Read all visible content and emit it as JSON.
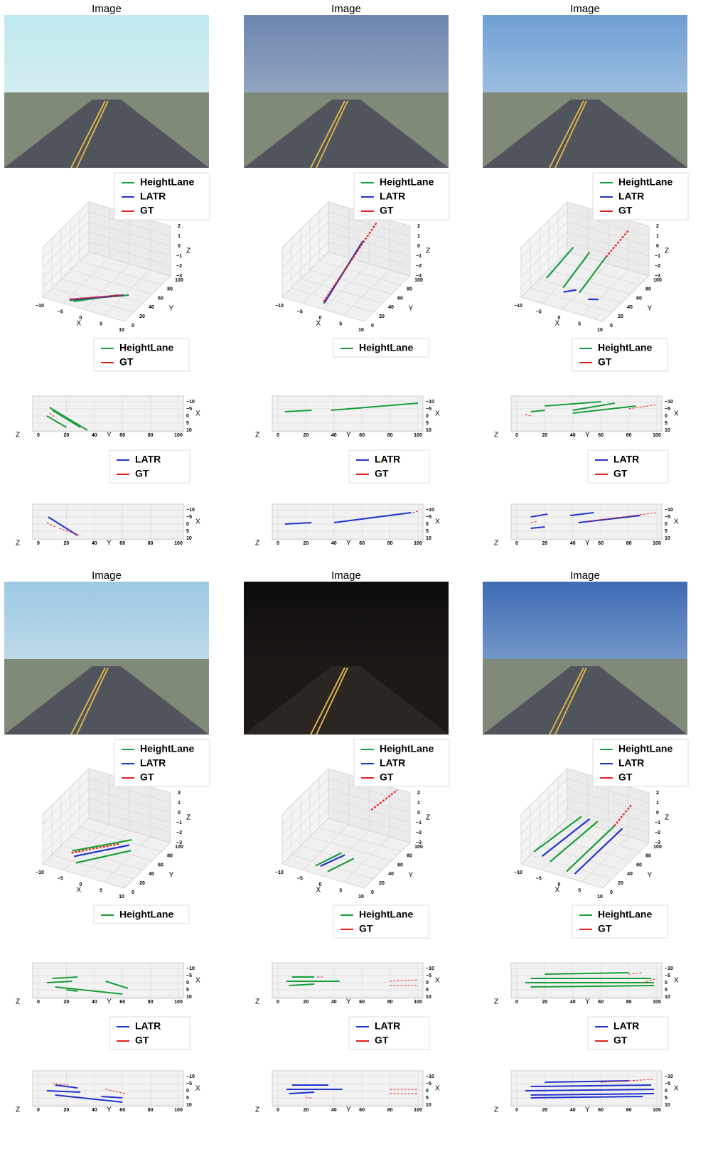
{
  "series": [
    {
      "name": "HeightLane",
      "color": "#1a9e3a"
    },
    {
      "name": "LATR",
      "color": "#2233cc"
    },
    {
      "name": "GT",
      "color": "#e8201c"
    }
  ],
  "axes3d": {
    "xlim": [
      -10,
      10
    ],
    "ylim": [
      0,
      100
    ],
    "zlim": [
      -3,
      2
    ],
    "xlabel": "X",
    "ylabel": "Y",
    "zlabel": "Z",
    "xticks": [
      {
        "value": -10,
        "label": "−10"
      },
      {
        "value": -5,
        "label": "−5"
      },
      0,
      5,
      10
    ],
    "yticks": [
      0,
      20,
      40,
      60,
      80,
      100
    ],
    "zticks": [
      {
        "value": -3,
        "label": "−3"
      },
      {
        "value": -2,
        "label": "−2"
      },
      {
        "value": -1,
        "label": "−1"
      },
      0,
      1,
      2
    ]
  },
  "topview": {
    "xlim": [
      0,
      100
    ],
    "ylim": [
      -10,
      10
    ],
    "xlabel": "Y",
    "ylabel": "X",
    "zlabel": "Z",
    "xticks": [
      0,
      20,
      40,
      60,
      80,
      100
    ],
    "yticks": [
      {
        "value": -10,
        "label": "−10"
      },
      {
        "value": -5,
        "label": "−5"
      },
      0,
      5,
      10
    ]
  },
  "panels": [
    {
      "title": "Image",
      "lanes3d": {
        "HeightLane": [
          [
            [
              -4,
              5,
              -2.8
            ],
            [
              6,
              45,
              -2.9
            ]
          ],
          [
            [
              -3,
              5,
              -2.8
            ],
            [
              4,
              40,
              -2.9
            ]
          ]
        ],
        "LATR": [
          [
            [
              -4,
              6,
              -2.8
            ],
            [
              5,
              42,
              -2.9
            ]
          ]
        ],
        "GT": [
          [
            [
              -4,
              5,
              -2.7
            ],
            [
              5,
              40,
              -2.8
            ]
          ]
        ]
      },
      "top1": {
        "HeightLane": [
          [
            [
              8,
              -6
            ],
            [
              35,
              10
            ]
          ],
          [
            [
              10,
              -4
            ],
            [
              30,
              8
            ]
          ],
          [
            [
              6,
              0
            ],
            [
              20,
              8
            ]
          ]
        ],
        "GT": [
          [
            [
              8,
              -2
            ],
            [
              12,
              1
            ]
          ]
        ]
      },
      "top2": {
        "LATR": [
          [
            [
              7,
              -5
            ],
            [
              28,
              8
            ]
          ]
        ],
        "GT": [
          [
            [
              6,
              -1
            ],
            [
              12,
              2
            ]
          ],
          [
            [
              15,
              3
            ],
            [
              30,
              8
            ]
          ]
        ]
      }
    },
    {
      "title": "Image",
      "lanes3d": {
        "HeightLane": [
          [
            [
              -1,
              10,
              -3
            ],
            [
              3,
              60,
              1.5
            ]
          ]
        ],
        "LATR": [
          [
            [
              -1,
              12,
              -3
            ],
            [
              3,
              60,
              1.5
            ]
          ]
        ],
        "GT": [
          [
            [
              -1,
              10,
              -2.8
            ],
            [
              4,
              80,
              2.5
            ]
          ]
        ]
      },
      "top1": {
        "HeightLane": [
          [
            [
              5,
              -3
            ],
            [
              24,
              -4
            ]
          ],
          [
            [
              38,
              -4
            ],
            [
              100,
              -9
            ]
          ]
        ]
      },
      "top2": {
        "LATR": [
          [
            [
              5,
              0
            ],
            [
              24,
              -1
            ]
          ],
          [
            [
              40,
              -1
            ],
            [
              95,
              -8
            ]
          ]
        ],
        "GT": [
          [
            [
              96,
              -8
            ],
            [
              100,
              -9
            ]
          ]
        ]
      }
    },
    {
      "title": "Image",
      "lanes3d": {
        "HeightLane": [
          [
            [
              -6,
              20,
              -1.5
            ],
            [
              -4,
              60,
              0
            ]
          ],
          [
            [
              -2,
              20,
              -2
            ],
            [
              0,
              60,
              0
            ]
          ],
          [
            [
              2,
              20,
              -2
            ],
            [
              4,
              60,
              0
            ]
          ]
        ],
        "LATR": [
          [
            [
              -3,
              30,
              -3
            ],
            [
              -1,
              40,
              -3
            ]
          ],
          [
            [
              3,
              30,
              -3
            ],
            [
              5,
              35,
              -3
            ]
          ]
        ],
        "GT": [
          [
            [
              4,
              60,
              0
            ],
            [
              6,
              90,
              1.5
            ]
          ]
        ]
      },
      "top1": {
        "HeightLane": [
          [
            [
              10,
              -3
            ],
            [
              20,
              -4
            ]
          ],
          [
            [
              20,
              -7
            ],
            [
              60,
              -10
            ]
          ],
          [
            [
              40,
              -2
            ],
            [
              85,
              -7
            ]
          ],
          [
            [
              40,
              -4
            ],
            [
              70,
              -9
            ]
          ]
        ],
        "GT": [
          [
            [
              6,
              -1
            ],
            [
              10,
              0
            ]
          ],
          [
            [
              80,
              -5
            ],
            [
              100,
              -8
            ]
          ]
        ]
      },
      "top2": {
        "LATR": [
          [
            [
              10,
              -5
            ],
            [
              22,
              -7
            ]
          ],
          [
            [
              38,
              -6
            ],
            [
              55,
              -8
            ]
          ],
          [
            [
              44,
              -1
            ],
            [
              88,
              -6
            ]
          ],
          [
            [
              10,
              3
            ],
            [
              20,
              2
            ]
          ]
        ],
        "GT": [
          [
            [
              50,
              -2
            ],
            [
              100,
              -8
            ]
          ],
          [
            [
              10,
              -1
            ],
            [
              15,
              -2
            ]
          ]
        ]
      }
    },
    {
      "title": "Image",
      "lanes3d": {
        "HeightLane": [
          [
            [
              -5,
              20,
              -2
            ],
            [
              5,
              60,
              -1.5
            ]
          ],
          [
            [
              -3,
              10,
              -2.5
            ],
            [
              6,
              50,
              -2
            ]
          ]
        ],
        "LATR": [
          [
            [
              -4,
              15,
              -2.2
            ],
            [
              5,
              55,
              -1.8
            ]
          ]
        ],
        "GT": [
          [
            [
              -5,
              18,
              -2.1
            ],
            [
              3,
              50,
              -1.7
            ]
          ]
        ]
      },
      "top1": {
        "HeightLane": [
          [
            [
              10,
              -3
            ],
            [
              28,
              -4
            ]
          ],
          [
            [
              6,
              0
            ],
            [
              24,
              -1
            ]
          ],
          [
            [
              12,
              3
            ],
            [
              60,
              8
            ]
          ],
          [
            [
              20,
              5
            ],
            [
              28,
              6
            ]
          ],
          [
            [
              48,
              -1
            ],
            [
              64,
              4
            ]
          ]
        ]
      },
      "top2": {
        "LATR": [
          [
            [
              12,
              -4
            ],
            [
              28,
              -2
            ]
          ],
          [
            [
              6,
              0
            ],
            [
              30,
              1
            ]
          ],
          [
            [
              12,
              3
            ],
            [
              60,
              8
            ]
          ],
          [
            [
              45,
              4
            ],
            [
              60,
              5
            ]
          ]
        ],
        "GT": [
          [
            [
              10,
              -5
            ],
            [
              22,
              -4
            ]
          ],
          [
            [
              48,
              -1
            ],
            [
              62,
              2
            ]
          ]
        ]
      }
    },
    {
      "title": "Image",
      "lanes3d": {
        "HeightLane": [
          [
            [
              -3,
              10,
              -2.8
            ],
            [
              0,
              40,
              -2.5
            ]
          ],
          [
            [
              0,
              10,
              -3
            ],
            [
              3,
              40,
              -2.7
            ]
          ]
        ],
        "LATR": [
          [
            [
              -2,
              12,
              -2.8
            ],
            [
              1,
              38,
              -2.5
            ]
          ]
        ],
        "GT": [
          [
            [
              5,
              60,
              1.5
            ],
            [
              8,
              90,
              2.5
            ]
          ]
        ]
      },
      "top1": {
        "HeightLane": [
          [
            [
              10,
              -4
            ],
            [
              26,
              -4
            ]
          ],
          [
            [
              6,
              -1
            ],
            [
              44,
              -1
            ]
          ],
          [
            [
              8,
              2
            ],
            [
              26,
              1
            ]
          ]
        ],
        "GT": [
          [
            [
              28,
              -4
            ],
            [
              32,
              -4
            ]
          ],
          [
            [
              80,
              2
            ],
            [
              100,
              2
            ]
          ],
          [
            [
              80,
              -1
            ],
            [
              100,
              -2
            ]
          ]
        ]
      },
      "top2": {
        "LATR": [
          [
            [
              10,
              -4
            ],
            [
              36,
              -4
            ]
          ],
          [
            [
              6,
              -1
            ],
            [
              46,
              -1
            ]
          ],
          [
            [
              8,
              2
            ],
            [
              26,
              1
            ]
          ]
        ],
        "GT": [
          [
            [
              80,
              -1
            ],
            [
              100,
              -1
            ]
          ],
          [
            [
              80,
              2
            ],
            [
              100,
              2
            ]
          ],
          [
            [
              20,
              5
            ],
            [
              24,
              5
            ]
          ]
        ]
      }
    },
    {
      "title": "Image",
      "lanes3d": {
        "HeightLane": [
          [
            [
              -8,
              10,
              -2
            ],
            [
              -2,
              60,
              0
            ]
          ],
          [
            [
              -4,
              10,
              -2.5
            ],
            [
              2,
              60,
              0
            ]
          ],
          [
            [
              0,
              10,
              -3
            ],
            [
              6,
              60,
              0
            ]
          ]
        ],
        "LATR": [
          [
            [
              -6,
              10,
              -2.2
            ],
            [
              0,
              60,
              0
            ]
          ],
          [
            [
              2,
              10,
              -3
            ],
            [
              8,
              60,
              0
            ]
          ]
        ],
        "GT": [
          [
            [
              6,
              60,
              0
            ],
            [
              8,
              80,
              1.5
            ]
          ]
        ]
      },
      "top1": {
        "HeightLane": [
          [
            [
              20,
              -6
            ],
            [
              80,
              -7
            ]
          ],
          [
            [
              10,
              -3
            ],
            [
              96,
              -3
            ]
          ],
          [
            [
              6,
              0
            ],
            [
              98,
              0
            ]
          ],
          [
            [
              10,
              3
            ],
            [
              98,
              2
            ]
          ]
        ],
        "GT": [
          [
            [
              80,
              -6
            ],
            [
              90,
              -7
            ]
          ],
          [
            [
              90,
              0
            ],
            [
              100,
              -3
            ]
          ]
        ]
      },
      "top2": {
        "LATR": [
          [
            [
              20,
              -6
            ],
            [
              80,
              -7
            ]
          ],
          [
            [
              10,
              -3
            ],
            [
              96,
              -4
            ]
          ],
          [
            [
              6,
              0
            ],
            [
              98,
              -1
            ]
          ],
          [
            [
              10,
              3
            ],
            [
              98,
              2
            ]
          ],
          [
            [
              10,
              5
            ],
            [
              90,
              4
            ]
          ]
        ],
        "GT": [
          [
            [
              60,
              -6
            ],
            [
              98,
              -8
            ]
          ]
        ]
      }
    }
  ]
}
